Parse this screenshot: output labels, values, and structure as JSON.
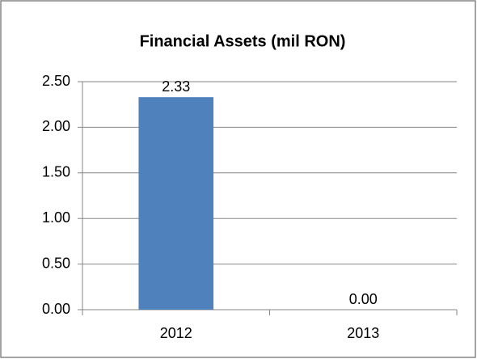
{
  "chart_data": {
    "type": "bar",
    "title": "Financial Assets (mil RON)",
    "categories": [
      "2012",
      "2013"
    ],
    "values": [
      2.33,
      0
    ],
    "value_labels": [
      "2.33",
      "0.00"
    ],
    "color": "#4f81bd",
    "ylim": [
      0,
      2.5
    ],
    "yticks": [
      {
        "value": 0,
        "label": "0.00"
      },
      {
        "value": 0.5,
        "label": "0.50"
      },
      {
        "value": 1,
        "label": "1.00"
      },
      {
        "value": 1.5,
        "label": "1.50"
      },
      {
        "value": 2,
        "label": "2.00"
      },
      {
        "value": 2.5,
        "label": "2.50"
      }
    ],
    "grid": true
  }
}
